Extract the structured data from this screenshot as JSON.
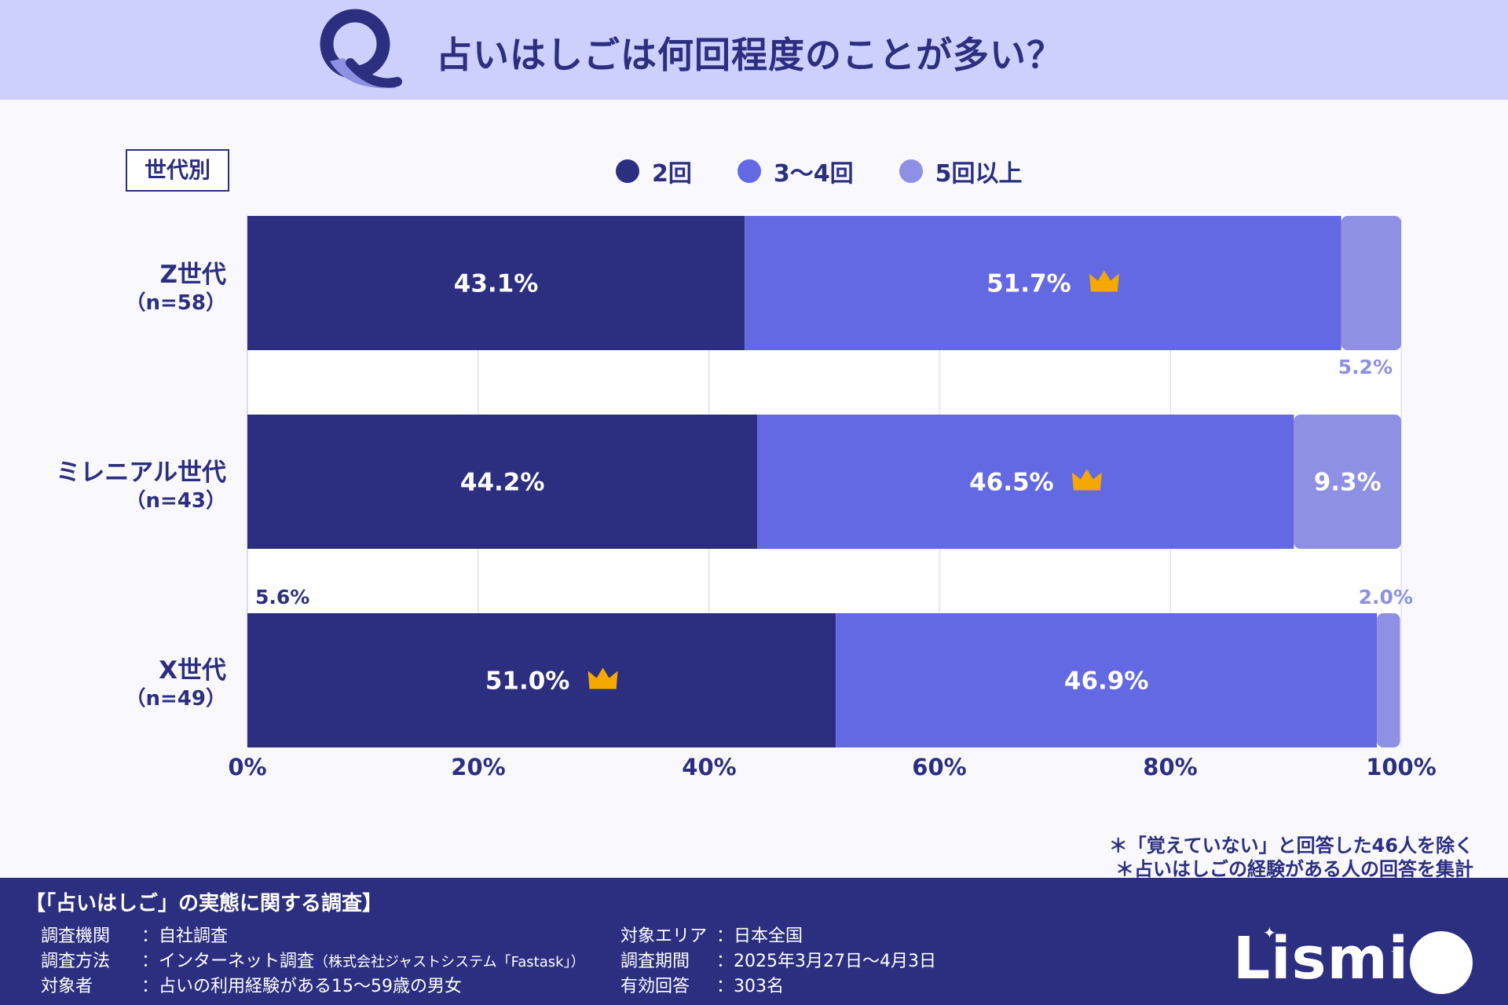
{
  "header": {
    "question": "占いはしごは何回程度のことが多い？",
    "q_icon": "q-letter-icon"
  },
  "group_tag": "世代別",
  "colors": {
    "dark": "#2c2f80",
    "mid": "#6369e3",
    "light": "#8d90e3",
    "header_bg": "#cdcffc",
    "crown": "#f5a800"
  },
  "chart_data": {
    "type": "bar",
    "orientation": "horizontal-stacked",
    "xlim": [
      0,
      100
    ],
    "x_ticks": [
      "0%",
      "20%",
      "40%",
      "60%",
      "80%",
      "100%"
    ],
    "grid": true,
    "legend_position": "top",
    "categories": [
      {
        "name": "Z世代",
        "n": "（n=58）"
      },
      {
        "name": "ミレニアル世代",
        "n": "（n=43）"
      },
      {
        "name": "X世代",
        "n": "（n=49）"
      }
    ],
    "series": [
      {
        "name": "2回",
        "color": "#2c2f80",
        "values": [
          43.1,
          44.2,
          51.0
        ],
        "labels": [
          "43.1%",
          "44.2%",
          "51.0%"
        ]
      },
      {
        "name": "3〜4回",
        "color": "#6369e3",
        "values": [
          51.7,
          46.5,
          46.9
        ],
        "labels": [
          "51.7%",
          "46.5%",
          "46.9%"
        ]
      },
      {
        "name": "5回以上",
        "color": "#8d90e3",
        "values": [
          5.2,
          9.3,
          2.0
        ],
        "labels": [
          "5.2%",
          "9.3%",
          "2.0%"
        ]
      }
    ],
    "highest_marked": [
      {
        "category": 0,
        "series": 1
      },
      {
        "category": 1,
        "series": 1
      },
      {
        "category": 2,
        "series": 0
      }
    ],
    "annotations": [
      {
        "text": "5.6%",
        "position": "above-x-generation-left"
      }
    ]
  },
  "notes": [
    "＊「覚えていない」と回答した46人を除く",
    "＊占いはしごの経験がある人の回答を集計"
  ],
  "footer": {
    "title": "【「占いはしご」の実態に関する調査】",
    "left": [
      {
        "key": "調査機関",
        "value": "：自社調査",
        "small": ""
      },
      {
        "key": "調査方法",
        "value": "：インターネット調査",
        "small": "（株式会社ジャストシステム「Fastask」）"
      },
      {
        "key": "対象者",
        "value": "：占いの利用経験がある15〜59歳の男女",
        "small": ""
      }
    ],
    "right": [
      {
        "key": "対象エリア",
        "value": "：日本全国"
      },
      {
        "key": "調査期間",
        "value": "：2025年3月27日〜4月3日"
      },
      {
        "key": "有効回答",
        "value": "：303名"
      }
    ],
    "logo": "Lismi"
  }
}
